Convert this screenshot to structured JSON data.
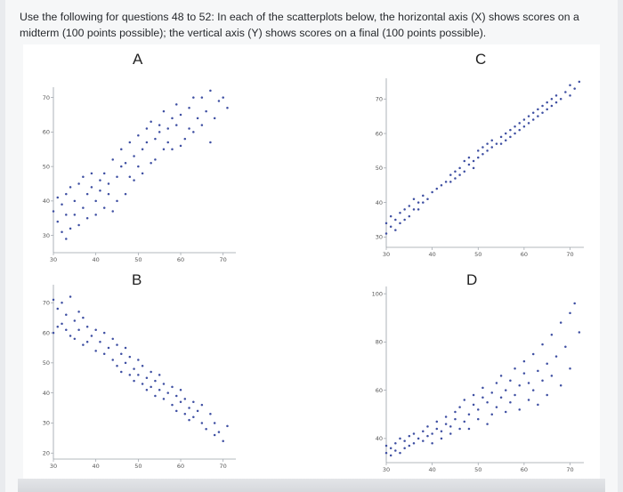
{
  "question": {
    "line1": "Use the following for questions 48 to 52: In each of the scatterplots below, the horizontal axis (X) shows scores on a",
    "line2": "midterm (100 points possible); the vertical axis (Y) shows scores on a final (100 points possible)."
  },
  "colors": {
    "dot": "#3e4fa2",
    "axis": "#9aa0a8"
  },
  "chart_data": [
    {
      "type": "scatter",
      "title": "A",
      "xlim": [
        30,
        73
      ],
      "ylim": [
        25,
        73
      ],
      "xticks": [
        "30",
        "40",
        "50",
        "60",
        "70"
      ],
      "yticks": [
        "30",
        "40",
        "50",
        "60",
        "70"
      ],
      "points": [
        [
          30,
          37
        ],
        [
          31,
          41
        ],
        [
          31,
          34
        ],
        [
          32,
          31
        ],
        [
          32,
          39
        ],
        [
          33,
          42
        ],
        [
          33,
          29
        ],
        [
          33,
          36
        ],
        [
          34,
          44
        ],
        [
          34,
          32
        ],
        [
          35,
          40
        ],
        [
          35,
          36
        ],
        [
          36,
          45
        ],
        [
          36,
          33
        ],
        [
          37,
          47
        ],
        [
          37,
          38
        ],
        [
          38,
          42
        ],
        [
          38,
          35
        ],
        [
          39,
          48
        ],
        [
          39,
          44
        ],
        [
          40,
          40
        ],
        [
          40,
          36
        ],
        [
          41,
          46
        ],
        [
          41,
          43
        ],
        [
          42,
          48
        ],
        [
          42,
          38
        ],
        [
          43,
          42
        ],
        [
          43,
          45
        ],
        [
          44,
          52
        ],
        [
          44,
          37
        ],
        [
          45,
          47
        ],
        [
          45,
          40
        ],
        [
          46,
          55
        ],
        [
          46,
          50
        ],
        [
          47,
          42
        ],
        [
          47,
          51
        ],
        [
          48,
          57
        ],
        [
          48,
          47
        ],
        [
          49,
          53
        ],
        [
          49,
          46
        ],
        [
          50,
          59
        ],
        [
          50,
          50
        ],
        [
          51,
          55
        ],
        [
          51,
          48
        ],
        [
          52,
          61
        ],
        [
          52,
          57
        ],
        [
          53,
          51
        ],
        [
          53,
          63
        ],
        [
          54,
          58
        ],
        [
          54,
          52
        ],
        [
          55,
          62
        ],
        [
          55,
          60
        ],
        [
          56,
          55
        ],
        [
          56,
          66
        ],
        [
          57,
          61
        ],
        [
          57,
          57
        ],
        [
          58,
          64
        ],
        [
          58,
          55
        ],
        [
          59,
          68
        ],
        [
          59,
          62
        ],
        [
          60,
          56
        ],
        [
          60,
          65
        ],
        [
          61,
          58
        ],
        [
          62,
          67
        ],
        [
          62,
          61
        ],
        [
          63,
          70
        ],
        [
          63,
          60
        ],
        [
          64,
          64
        ],
        [
          65,
          70
        ],
        [
          65,
          62
        ],
        [
          66,
          66
        ],
        [
          67,
          72
        ],
        [
          67,
          57
        ],
        [
          68,
          64
        ],
        [
          69,
          69
        ],
        [
          70,
          70
        ],
        [
          71,
          67
        ]
      ]
    },
    {
      "type": "scatter",
      "title": "C",
      "xlim": [
        30,
        73
      ],
      "ylim": [
        27,
        76
      ],
      "xticks": [
        "30",
        "40",
        "50",
        "60",
        "70"
      ],
      "yticks": [
        "30",
        "40",
        "50",
        "60",
        "70"
      ],
      "points": [
        [
          30,
          34
        ],
        [
          30,
          31
        ],
        [
          31,
          36
        ],
        [
          31,
          33
        ],
        [
          32,
          35
        ],
        [
          32,
          32
        ],
        [
          33,
          37
        ],
        [
          33,
          34
        ],
        [
          34,
          38
        ],
        [
          34,
          35
        ],
        [
          35,
          36
        ],
        [
          35,
          39
        ],
        [
          36,
          38
        ],
        [
          36,
          41
        ],
        [
          37,
          40
        ],
        [
          37,
          38
        ],
        [
          38,
          42
        ],
        [
          38,
          40
        ],
        [
          39,
          41
        ],
        [
          40,
          43
        ],
        [
          41,
          44
        ],
        [
          42,
          45
        ],
        [
          43,
          46
        ],
        [
          44,
          48
        ],
        [
          44,
          46
        ],
        [
          45,
          47
        ],
        [
          45,
          49
        ],
        [
          46,
          48
        ],
        [
          46,
          50
        ],
        [
          47,
          49
        ],
        [
          47,
          52
        ],
        [
          48,
          51
        ],
        [
          48,
          53
        ],
        [
          49,
          50
        ],
        [
          49,
          52
        ],
        [
          50,
          53
        ],
        [
          50,
          55
        ],
        [
          51,
          54
        ],
        [
          51,
          56
        ],
        [
          52,
          55
        ],
        [
          52,
          57
        ],
        [
          53,
          56
        ],
        [
          53,
          58
        ],
        [
          54,
          57
        ],
        [
          55,
          59
        ],
        [
          55,
          57
        ],
        [
          56,
          58
        ],
        [
          56,
          60
        ],
        [
          57,
          59
        ],
        [
          57,
          61
        ],
        [
          58,
          60
        ],
        [
          58,
          62
        ],
        [
          59,
          61
        ],
        [
          59,
          63
        ],
        [
          60,
          62
        ],
        [
          60,
          64
        ],
        [
          61,
          63
        ],
        [
          61,
          65
        ],
        [
          62,
          64
        ],
        [
          62,
          66
        ],
        [
          63,
          65
        ],
        [
          63,
          67
        ],
        [
          64,
          66
        ],
        [
          64,
          68
        ],
        [
          65,
          67
        ],
        [
          65,
          69
        ],
        [
          66,
          68
        ],
        [
          66,
          70
        ],
        [
          67,
          69
        ],
        [
          67,
          71
        ],
        [
          68,
          70
        ],
        [
          69,
          72
        ],
        [
          70,
          71
        ],
        [
          70,
          74
        ],
        [
          71,
          73
        ],
        [
          72,
          75
        ]
      ]
    },
    {
      "type": "scatter",
      "title": "B",
      "xlim": [
        30,
        73
      ],
      "ylim": [
        18,
        76
      ],
      "xticks": [
        "30",
        "40",
        "50",
        "60",
        "70"
      ],
      "yticks": [
        "20",
        "30",
        "40",
        "50",
        "60",
        "70"
      ],
      "points": [
        [
          30,
          71
        ],
        [
          30,
          60
        ],
        [
          31,
          68
        ],
        [
          31,
          62
        ],
        [
          32,
          63
        ],
        [
          32,
          70
        ],
        [
          33,
          61
        ],
        [
          33,
          66
        ],
        [
          34,
          59
        ],
        [
          34,
          72
        ],
        [
          35,
          64
        ],
        [
          35,
          58
        ],
        [
          36,
          67
        ],
        [
          36,
          61
        ],
        [
          37,
          56
        ],
        [
          37,
          65
        ],
        [
          38,
          62
        ],
        [
          38,
          57
        ],
        [
          39,
          59
        ],
        [
          40,
          54
        ],
        [
          40,
          61
        ],
        [
          41,
          57
        ],
        [
          42,
          60
        ],
        [
          42,
          53
        ],
        [
          43,
          55
        ],
        [
          44,
          58
        ],
        [
          44,
          51
        ],
        [
          45,
          56
        ],
        [
          45,
          49
        ],
        [
          46,
          53
        ],
        [
          46,
          47
        ],
        [
          47,
          55
        ],
        [
          47,
          50
        ],
        [
          48,
          46
        ],
        [
          48,
          52
        ],
        [
          49,
          48
        ],
        [
          49,
          44
        ],
        [
          50,
          51
        ],
        [
          50,
          46
        ],
        [
          51,
          43
        ],
        [
          51,
          49
        ],
        [
          52,
          45
        ],
        [
          52,
          41
        ],
        [
          53,
          47
        ],
        [
          53,
          42
        ],
        [
          54,
          44
        ],
        [
          54,
          39
        ],
        [
          55,
          41
        ],
        [
          55,
          46
        ],
        [
          56,
          38
        ],
        [
          56,
          43
        ],
        [
          57,
          40
        ],
        [
          58,
          36
        ],
        [
          58,
          42
        ],
        [
          59,
          39
        ],
        [
          59,
          34
        ],
        [
          60,
          37
        ],
        [
          60,
          41
        ],
        [
          61,
          33
        ],
        [
          61,
          38
        ],
        [
          62,
          35
        ],
        [
          62,
          31
        ],
        [
          63,
          37
        ],
        [
          63,
          32
        ],
        [
          64,
          34
        ],
        [
          65,
          30
        ],
        [
          65,
          36
        ],
        [
          66,
          28
        ],
        [
          67,
          33
        ],
        [
          68,
          26
        ],
        [
          68,
          30
        ],
        [
          69,
          27
        ],
        [
          70,
          24
        ],
        [
          71,
          29
        ]
      ]
    },
    {
      "type": "scatter",
      "title": "D",
      "xlim": [
        30,
        73
      ],
      "ylim": [
        30,
        103
      ],
      "xticks": [
        "30",
        "40",
        "50",
        "60",
        "70"
      ],
      "yticks": [
        "40",
        "60",
        "80",
        "100"
      ],
      "points": [
        [
          30,
          34
        ],
        [
          30,
          37
        ],
        [
          31,
          33
        ],
        [
          31,
          36
        ],
        [
          32,
          35
        ],
        [
          32,
          38
        ],
        [
          33,
          34
        ],
        [
          33,
          40
        ],
        [
          34,
          36
        ],
        [
          34,
          39
        ],
        [
          35,
          37
        ],
        [
          35,
          41
        ],
        [
          36,
          38
        ],
        [
          36,
          42
        ],
        [
          37,
          40
        ],
        [
          38,
          39
        ],
        [
          38,
          43
        ],
        [
          39,
          41
        ],
        [
          39,
          45
        ],
        [
          40,
          42
        ],
        [
          40,
          38
        ],
        [
          41,
          44
        ],
        [
          41,
          47
        ],
        [
          42,
          43
        ],
        [
          42,
          40
        ],
        [
          43,
          46
        ],
        [
          43,
          49
        ],
        [
          44,
          45
        ],
        [
          44,
          42
        ],
        [
          45,
          48
        ],
        [
          45,
          51
        ],
        [
          46,
          44
        ],
        [
          46,
          53
        ],
        [
          47,
          47
        ],
        [
          47,
          56
        ],
        [
          48,
          50
        ],
        [
          48,
          44
        ],
        [
          49,
          54
        ],
        [
          49,
          58
        ],
        [
          50,
          48
        ],
        [
          50,
          52
        ],
        [
          51,
          57
        ],
        [
          51,
          61
        ],
        [
          52,
          46
        ],
        [
          52,
          55
        ],
        [
          53,
          59
        ],
        [
          53,
          50
        ],
        [
          54,
          63
        ],
        [
          54,
          53
        ],
        [
          55,
          57
        ],
        [
          55,
          66
        ],
        [
          56,
          51
        ],
        [
          56,
          60
        ],
        [
          57,
          64
        ],
        [
          57,
          55
        ],
        [
          58,
          69
        ],
        [
          58,
          58
        ],
        [
          59,
          62
        ],
        [
          59,
          52
        ],
        [
          60,
          67
        ],
        [
          60,
          72
        ],
        [
          61,
          56
        ],
        [
          61,
          63
        ],
        [
          62,
          75
        ],
        [
          62,
          60
        ],
        [
          63,
          68
        ],
        [
          63,
          54
        ],
        [
          64,
          79
        ],
        [
          64,
          64
        ],
        [
          65,
          71
        ],
        [
          65,
          58
        ],
        [
          66,
          83
        ],
        [
          66,
          66
        ],
        [
          67,
          74
        ],
        [
          68,
          88
        ],
        [
          68,
          62
        ],
        [
          69,
          78
        ],
        [
          70,
          92
        ],
        [
          70,
          69
        ],
        [
          71,
          96
        ],
        [
          72,
          84
        ]
      ]
    }
  ]
}
